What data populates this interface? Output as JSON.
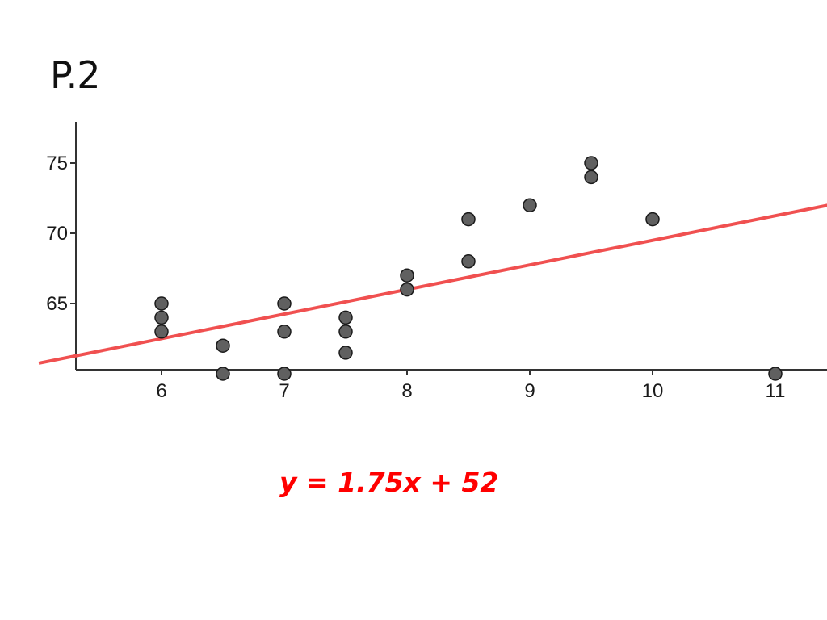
{
  "slide": {
    "title": "P.2",
    "equation": "y = 1.75x + 52"
  },
  "colors": {
    "point_fill": "#606060",
    "point_stroke": "#1a1a1a",
    "trend_line": "#f05050",
    "equation": "#ff0000",
    "axis": "#333333"
  },
  "chart_data": {
    "type": "scatter",
    "xlim": [
      5.3,
      11.3
    ],
    "ylim": [
      60,
      78
    ],
    "x_ticks": [
      6,
      7,
      8,
      9,
      10,
      11
    ],
    "y_ticks": [
      65,
      70,
      75
    ],
    "grid": false,
    "legend": "none",
    "points": [
      {
        "x": 6,
        "y": 65
      },
      {
        "x": 6,
        "y": 64
      },
      {
        "x": 6,
        "y": 63
      },
      {
        "x": 6.5,
        "y": 62
      },
      {
        "x": 6.5,
        "y": 60
      },
      {
        "x": 7,
        "y": 65
      },
      {
        "x": 7,
        "y": 63
      },
      {
        "x": 7,
        "y": 60
      },
      {
        "x": 7.5,
        "y": 64
      },
      {
        "x": 7.5,
        "y": 63
      },
      {
        "x": 7.5,
        "y": 61.5
      },
      {
        "x": 8,
        "y": 67
      },
      {
        "x": 8,
        "y": 66
      },
      {
        "x": 8.5,
        "y": 71
      },
      {
        "x": 8.5,
        "y": 68
      },
      {
        "x": 9,
        "y": 72
      },
      {
        "x": 9.5,
        "y": 75
      },
      {
        "x": 9.5,
        "y": 74
      },
      {
        "x": 10,
        "y": 71
      },
      {
        "x": 11,
        "y": 60
      }
    ],
    "trend_line": {
      "slope": 1.75,
      "intercept": 52,
      "x_range": [
        5,
        11.5
      ]
    }
  }
}
